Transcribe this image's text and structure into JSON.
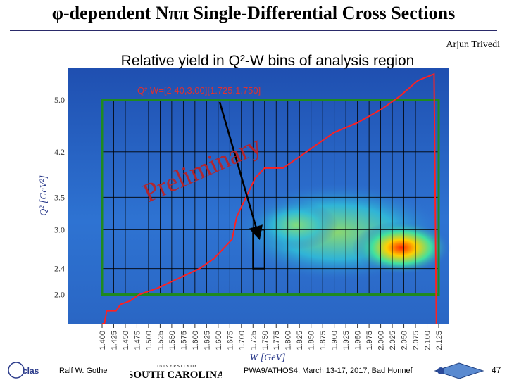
{
  "slide": {
    "title": "φ-dependent Nππ Single-Differential Cross Sections",
    "author": "Arjun Trivedi",
    "footer_author": "Ralf  W. Gothe",
    "footer_conference": "PWA9/ATHOS4, March 13-17, 2017, Bad Honnef",
    "page_number": "47",
    "usc_logo_text": "SOUTH CAROLINA",
    "usc_logo_top": "U N I V E R S I T Y  O F",
    "clas_logo_text": "clas"
  },
  "chart_data": {
    "type": "heatmap",
    "title": "Relative yield in Q²-W bins of analysis region",
    "annotation": "Q²,W=[2.40,3.00][1.725,1.750]",
    "watermark": "Preliminary",
    "xlabel": "W [GeV]",
    "ylabel": "Q² [GeV²]",
    "xlim": [
      1.4,
      2.125
    ],
    "ylim": [
      1.55,
      5.5
    ],
    "x_ticks": [
      "1.400",
      "1.425",
      "1.450",
      "1.475",
      "1.500",
      "1.525",
      "1.550",
      "1.575",
      "1.600",
      "1.625",
      "1.650",
      "1.675",
      "1.700",
      "1.725",
      "1.750",
      "1.775",
      "1.800",
      "1.825",
      "1.850",
      "1.875",
      "1.900",
      "1.925",
      "1.950",
      "1.975",
      "2.000",
      "2.025",
      "2.050",
      "2.075",
      "2.100",
      "2.125"
    ],
    "y_ticks": [
      "2.0",
      "2.4",
      "3.0",
      "3.5",
      "4.2",
      "5.0"
    ],
    "q2_bin_edges": [
      2.0,
      2.4,
      3.0,
      3.5,
      4.2,
      5.0
    ],
    "w_bin_edges": [
      1.4,
      1.425,
      1.45,
      1.475,
      1.5,
      1.525,
      1.55,
      1.575,
      1.6,
      1.625,
      1.65,
      1.675,
      1.7,
      1.725,
      1.75,
      1.775,
      1.8,
      1.825,
      1.85,
      1.875,
      1.9,
      1.925,
      1.95,
      1.975,
      2.0,
      2.025,
      2.05,
      2.075,
      2.1,
      2.125
    ],
    "analysis_region": {
      "w": [
        1.4,
        2.125
      ],
      "q2": [
        2.0,
        5.0
      ]
    },
    "highlighted_bin": {
      "w": [
        1.725,
        1.75
      ],
      "q2": [
        2.4,
        3.0
      ]
    },
    "acceptance_boundary": [
      [
        1.4,
        1.55
      ],
      [
        1.405,
        1.55
      ],
      [
        1.41,
        1.75
      ],
      [
        1.43,
        1.75
      ],
      [
        1.44,
        1.85
      ],
      [
        1.46,
        1.9
      ],
      [
        1.48,
        2.0
      ],
      [
        1.52,
        2.1
      ],
      [
        1.55,
        2.2
      ],
      [
        1.58,
        2.3
      ],
      [
        1.61,
        2.4
      ],
      [
        1.64,
        2.55
      ],
      [
        1.66,
        2.7
      ],
      [
        1.68,
        2.85
      ],
      [
        1.69,
        3.2
      ],
      [
        1.71,
        3.5
      ],
      [
        1.73,
        3.8
      ],
      [
        1.75,
        3.95
      ],
      [
        1.79,
        3.95
      ],
      [
        1.82,
        4.1
      ],
      [
        1.86,
        4.3
      ],
      [
        1.9,
        4.5
      ],
      [
        1.95,
        4.65
      ],
      [
        2.0,
        4.85
      ],
      [
        2.04,
        5.05
      ],
      [
        2.08,
        5.3
      ],
      [
        2.115,
        5.4
      ],
      [
        2.12,
        1.55
      ]
    ],
    "colors": {
      "frame": "#2e4db4",
      "grid_box": "#1f8a1f",
      "bin_lines": "#000000",
      "boundary": "#ff2020",
      "annotation": "#e03030",
      "arrow": "#000000"
    }
  }
}
